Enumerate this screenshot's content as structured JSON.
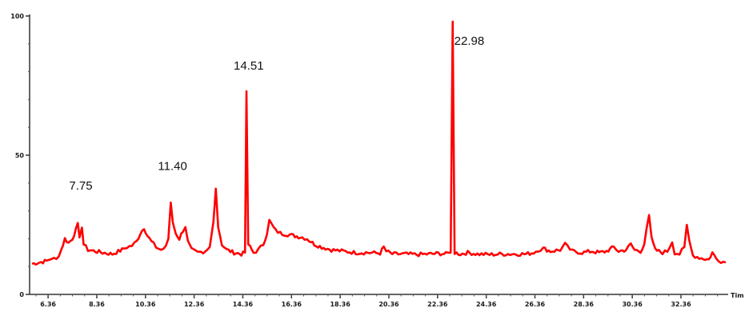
{
  "chart_data": {
    "type": "line",
    "title": "",
    "xlabel": "Tim",
    "ylabel": "",
    "xlim": [
      5.6,
      34.3
    ],
    "ylim": [
      0,
      100
    ],
    "grid": false,
    "line_color": "#ff0000",
    "axis_color": "#333333",
    "x_ticks": [
      6.36,
      8.36,
      10.36,
      12.36,
      14.36,
      16.36,
      18.36,
      20.36,
      22.36,
      24.36,
      26.36,
      28.36,
      30.36,
      32.36
    ],
    "x_tick_labels": [
      "6.36",
      "8.36",
      "10.36",
      "12.36",
      "14.36",
      "16.36",
      "18.36",
      "20.36",
      "22.36",
      "24.36",
      "26.36",
      "28.36",
      "30.36",
      "32.36"
    ],
    "y_ticks": [
      0,
      50,
      100
    ],
    "y_tick_labels": [
      "0",
      "50",
      "100"
    ],
    "peak_labels": [
      {
        "text": "7.75",
        "x": 7.75,
        "y": 40
      },
      {
        "text": "11.40",
        "x": 11.4,
        "y": 47
      },
      {
        "text": "14.51",
        "x": 14.51,
        "y": 83
      },
      {
        "text": "22.98",
        "x": 22.98,
        "y": 92
      }
    ],
    "series": [
      {
        "values": [
          [
            5.7,
            11
          ],
          [
            6.0,
            11.5
          ],
          [
            6.3,
            12
          ],
          [
            6.5,
            13
          ],
          [
            6.7,
            12.5
          ],
          [
            6.9,
            16
          ],
          [
            7.05,
            20
          ],
          [
            7.2,
            18.5
          ],
          [
            7.35,
            20
          ],
          [
            7.5,
            23
          ],
          [
            7.58,
            25
          ],
          [
            7.65,
            21
          ],
          [
            7.75,
            24
          ],
          [
            7.82,
            18
          ],
          [
            8.0,
            16
          ],
          [
            8.3,
            15.5
          ],
          [
            8.6,
            15
          ],
          [
            9.0,
            14.5
          ],
          [
            9.4,
            16
          ],
          [
            9.6,
            17
          ],
          [
            9.8,
            17.5
          ],
          [
            10.0,
            19
          ],
          [
            10.15,
            22
          ],
          [
            10.3,
            24
          ],
          [
            10.45,
            21
          ],
          [
            10.6,
            19
          ],
          [
            10.8,
            17
          ],
          [
            11.0,
            16
          ],
          [
            11.2,
            17
          ],
          [
            11.3,
            20
          ],
          [
            11.4,
            33
          ],
          [
            11.48,
            26
          ],
          [
            11.6,
            22
          ],
          [
            11.75,
            20
          ],
          [
            11.9,
            23
          ],
          [
            12.0,
            24.5
          ],
          [
            12.1,
            19
          ],
          [
            12.25,
            16
          ],
          [
            12.5,
            15
          ],
          [
            12.8,
            15.5
          ],
          [
            13.0,
            17
          ],
          [
            13.15,
            26
          ],
          [
            13.25,
            38
          ],
          [
            13.35,
            24
          ],
          [
            13.5,
            18
          ],
          [
            13.7,
            16
          ],
          [
            14.0,
            15
          ],
          [
            14.3,
            14.5
          ],
          [
            14.45,
            15
          ],
          [
            14.51,
            73
          ],
          [
            14.58,
            18
          ],
          [
            14.8,
            15
          ],
          [
            15.0,
            16
          ],
          [
            15.2,
            18
          ],
          [
            15.35,
            22
          ],
          [
            15.45,
            26.5
          ],
          [
            15.55,
            25
          ],
          [
            15.7,
            23
          ],
          [
            15.9,
            22
          ],
          [
            16.2,
            21.5
          ],
          [
            16.5,
            21
          ],
          [
            16.8,
            20.5
          ],
          [
            17.0,
            20
          ],
          [
            17.3,
            18
          ],
          [
            17.6,
            17
          ],
          [
            18.0,
            16
          ],
          [
            18.5,
            15.5
          ],
          [
            19.0,
            15
          ],
          [
            19.5,
            15
          ],
          [
            20.0,
            14.8
          ],
          [
            20.15,
            17
          ],
          [
            20.25,
            15.5
          ],
          [
            20.5,
            14.5
          ],
          [
            21.0,
            14.5
          ],
          [
            21.5,
            14.3
          ],
          [
            22.0,
            14.5
          ],
          [
            22.4,
            14.7
          ],
          [
            22.7,
            14.5
          ],
          [
            22.9,
            15
          ],
          [
            22.98,
            98
          ],
          [
            23.06,
            15
          ],
          [
            23.3,
            14.5
          ],
          [
            23.6,
            15
          ],
          [
            24.0,
            14.5
          ],
          [
            24.5,
            14.3
          ],
          [
            25.0,
            14.5
          ],
          [
            25.5,
            14.5
          ],
          [
            26.0,
            14.5
          ],
          [
            26.3,
            15
          ],
          [
            26.5,
            16
          ],
          [
            26.7,
            16.5
          ],
          [
            27.0,
            15.5
          ],
          [
            27.4,
            16
          ],
          [
            27.6,
            18
          ],
          [
            27.7,
            17
          ],
          [
            27.9,
            15.5
          ],
          [
            28.3,
            15
          ],
          [
            28.7,
            15.5
          ],
          [
            29.0,
            15
          ],
          [
            29.3,
            15.5
          ],
          [
            29.6,
            17
          ],
          [
            29.8,
            15.5
          ],
          [
            30.1,
            16
          ],
          [
            30.3,
            18
          ],
          [
            30.45,
            16
          ],
          [
            30.7,
            15.5
          ],
          [
            30.85,
            18
          ],
          [
            30.95,
            24
          ],
          [
            31.05,
            28.5
          ],
          [
            31.15,
            20
          ],
          [
            31.3,
            16
          ],
          [
            31.6,
            15
          ],
          [
            31.8,
            15.5
          ],
          [
            32.0,
            19
          ],
          [
            32.1,
            15
          ],
          [
            32.3,
            14.5
          ],
          [
            32.5,
            17
          ],
          [
            32.6,
            25
          ],
          [
            32.7,
            19
          ],
          [
            32.85,
            14
          ],
          [
            33.2,
            13
          ],
          [
            33.5,
            12.5
          ],
          [
            33.65,
            15
          ],
          [
            33.8,
            13
          ],
          [
            34.0,
            12
          ],
          [
            34.2,
            11.5
          ]
        ]
      }
    ]
  }
}
